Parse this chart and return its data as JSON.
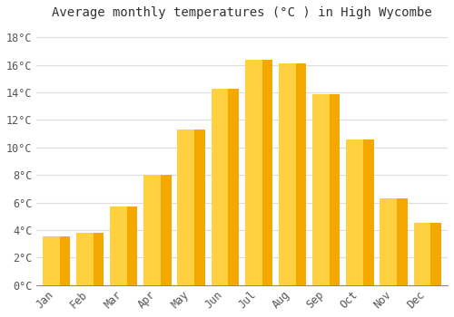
{
  "title": "Average monthly temperatures (°C ) in High Wycombe",
  "months": [
    "Jan",
    "Feb",
    "Mar",
    "Apr",
    "May",
    "Jun",
    "Jul",
    "Aug",
    "Sep",
    "Oct",
    "Nov",
    "Dec"
  ],
  "values": [
    3.5,
    3.8,
    5.7,
    8.0,
    11.3,
    14.3,
    16.4,
    16.1,
    13.9,
    10.6,
    6.3,
    4.5
  ],
  "bar_color_main": "#F5A800",
  "bar_color_highlight": "#FFD040",
  "bar_color_shadow": "#E09000",
  "background_color": "#FFFFFF",
  "grid_color": "#DDDDDD",
  "ylim": [
    0,
    19
  ],
  "yticks": [
    0,
    2,
    4,
    6,
    8,
    10,
    12,
    14,
    16,
    18
  ],
  "ytick_labels": [
    "0°C",
    "2°C",
    "4°C",
    "6°C",
    "8°C",
    "10°C",
    "12°C",
    "14°C",
    "16°C",
    "18°C"
  ],
  "title_fontsize": 10,
  "tick_fontsize": 8.5,
  "tick_font": "monospace",
  "bar_width": 0.82
}
